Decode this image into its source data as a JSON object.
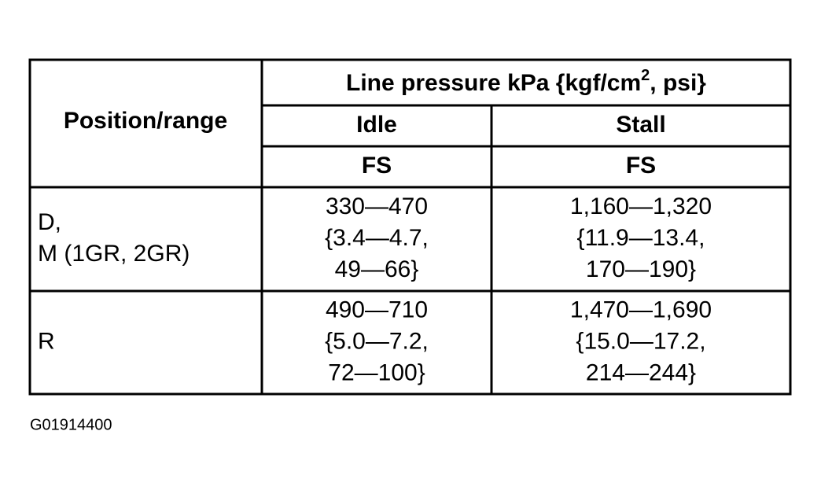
{
  "table": {
    "header": {
      "position": "Position/range",
      "group_main": "Line pressure kPa {kgf/cm",
      "group_sup": "2",
      "group_end": ", psi}",
      "columns": [
        "Idle",
        "Stall"
      ],
      "subcolumns": [
        "FS",
        "FS"
      ]
    },
    "rows": [
      {
        "position": [
          "D,",
          "M (1GR, 2GR)"
        ],
        "idle": [
          "330—470",
          "{3.4—4.7,",
          "49—66}"
        ],
        "stall": [
          "1,160—1,320",
          "{11.9—13.4,",
          "170—190}"
        ]
      },
      {
        "position": [
          "R"
        ],
        "idle": [
          "490—710",
          "{5.0—7.2,",
          "72—100}"
        ],
        "stall": [
          "1,470—1,690",
          "{15.0—17.2,",
          "214—244}"
        ]
      }
    ]
  },
  "footer": {
    "code": "G01914400"
  }
}
